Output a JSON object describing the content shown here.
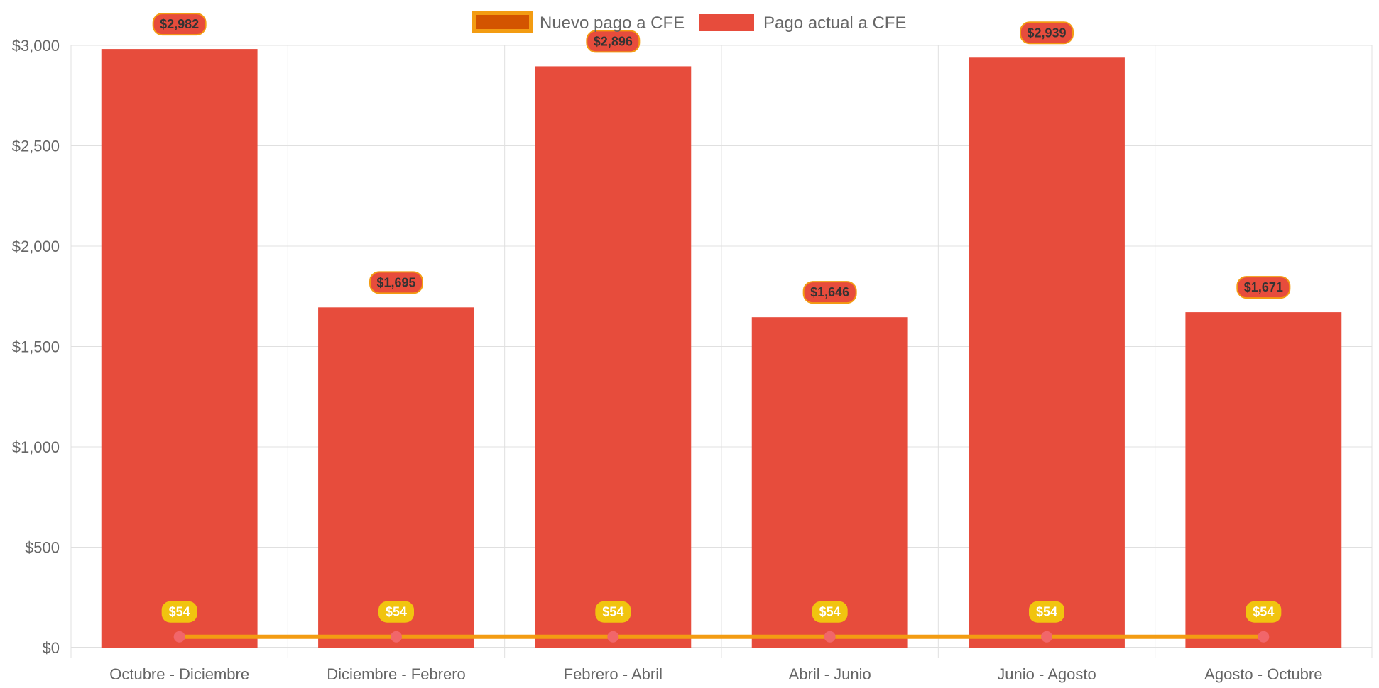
{
  "chart_data": {
    "type": "bar",
    "title": "",
    "xlabel": "",
    "ylabel": "",
    "categories": [
      "Octubre - Diciembre",
      "Diciembre - Febrero",
      "Febrero - Abril",
      "Abril - Junio",
      "Junio - Agosto",
      "Agosto - Octubre"
    ],
    "y_ticks": [
      "$0",
      "$500",
      "$1,000",
      "$1,500",
      "$2,000",
      "$2,500",
      "$3,000"
    ],
    "ylim": [
      0,
      3000
    ],
    "grid": true,
    "legend_position": "top-center",
    "series": [
      {
        "name": "Nuevo pago a CFE",
        "type": "line",
        "values": [
          54,
          54,
          54,
          54,
          54,
          54
        ],
        "labels": [
          "$54",
          "$54",
          "$54",
          "$54",
          "$54",
          "$54"
        ],
        "color": "#f39c12",
        "legend_fill": "#d35400",
        "point_color": "#f1666a",
        "label_bg": "#f1c40f"
      },
      {
        "name": "Pago actual a CFE",
        "type": "bar",
        "values": [
          2982,
          1695,
          2896,
          1646,
          2939,
          1671
        ],
        "labels": [
          "$2,982",
          "$1,695",
          "$2,896",
          "$1,646",
          "$2,939",
          "$1,671"
        ],
        "color": "#e74c3c",
        "label_bg": "#e74c3c",
        "label_border": "#f39c12"
      }
    ]
  }
}
